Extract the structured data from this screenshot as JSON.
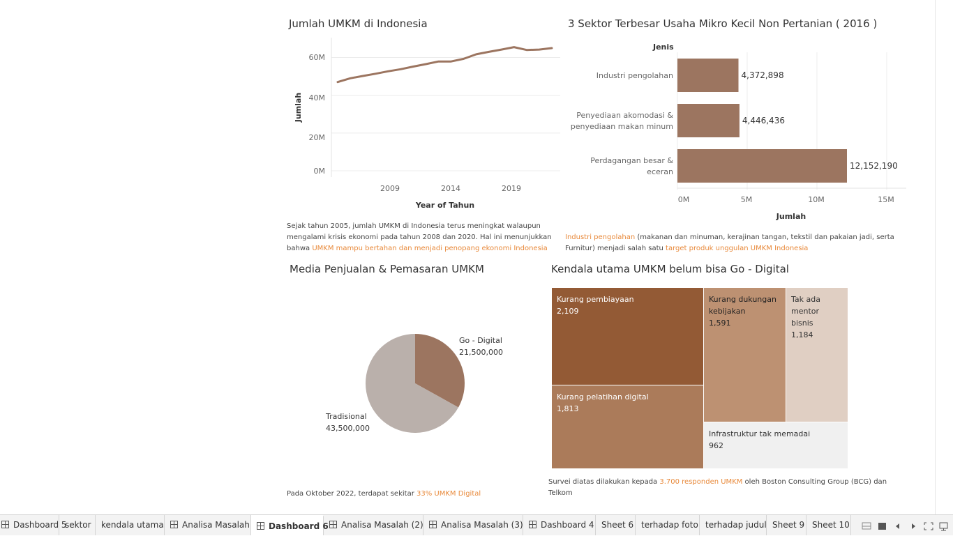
{
  "colors": {
    "brown": "#9c7560",
    "brown_dark": "#935a35",
    "brown_mid": "#bd9172",
    "light": "#e0cfc3",
    "gray_pie": "#bab0ab",
    "gray_light": "#f0f0f0",
    "highlight": "#e8893a"
  },
  "line_chart": {
    "title": "Jumlah UMKM di Indonesia",
    "ylabel": "Jumlah",
    "xlabel": "Year of Tahun",
    "yticks": [
      "60M",
      "40M",
      "20M",
      "0M"
    ],
    "xticks": [
      "2009",
      "2014",
      "2019"
    ]
  },
  "bar_chart": {
    "title": "3 Sektor Terbesar Usaha Mikro Kecil Non Pertanian ( 2016 )",
    "category_header": "Jenis",
    "xlabel": "Jumlah",
    "xticks": [
      "0M",
      "5M",
      "10M",
      "15M"
    ],
    "categories": [
      {
        "line1": "Industri pengolahan",
        "line2": ""
      },
      {
        "line1": "Penyediaan akomodasi &",
        "line2": "penyediaan makan minum"
      },
      {
        "line1": "Perdagangan besar &",
        "line2": "eceran"
      }
    ],
    "value_labels": [
      "4,372,898",
      "4,446,436",
      "12,152,190"
    ]
  },
  "note_line": {
    "line1": "Sejak tahun 2005, jumlah UMKM di Indonesia terus meningkat walaupun",
    "line2": "mengalami krisis ekonomi pada tahun 2008 dan 2020. Hal ini menunjukkan",
    "line3_prefix": "bahwa ",
    "line3_highlight": "UMKM mampu bertahan dan menjadi penopang ekonomi Indonesia"
  },
  "note_bar": {
    "highlight1": "Industri pengolahan",
    "line1_rest": " (makanan dan minuman, kerajinan tangan, tekstil dan pakaian jadi,  serta",
    "line2_prefix": "Furnitur) menjadi salah satu ",
    "highlight2": "target produk unggulan UMKM Indonesia"
  },
  "pie_chart": {
    "title": "Media Penjualan & Pemasaran UMKM",
    "slices": [
      {
        "name": "Go - Digital",
        "value_label": "21,500,000"
      },
      {
        "name": "Tradisional",
        "value_label": "43,500,000"
      }
    ],
    "note_prefix": "Pada Oktober 2022, terdapat sekitar ",
    "note_highlight": "33% UMKM Digital"
  },
  "treemap": {
    "title": "Kendala utama UMKM belum bisa Go - Digital",
    "cells": [
      {
        "label": "Kurang pembiayaan",
        "value": "2,109"
      },
      {
        "label": "Kurang pelatihan digital",
        "value": "1,813"
      },
      {
        "label": "Kurang dukungan kebijakan",
        "value": "1,591"
      },
      {
        "label": "Tak ada mentor bisnis",
        "value": "1,184"
      },
      {
        "label": "Infrastruktur tak memadai",
        "value": "962"
      }
    ],
    "note_prefix": "Survei diatas dilakukan kepada ",
    "note_highlight": "3.700 responden UMKM",
    "note_rest1": " oleh Boston Consulting Group (BCG) dan",
    "note_rest2": "Telkom"
  },
  "tabs": [
    "Dashboard 5",
    "sektor",
    "kendala utama",
    "Analisa Masalah",
    "Dashboard 6",
    "Analisa Masalah (2)",
    "Analisa Masalah (3)",
    "Dashboard 4",
    "Sheet 6",
    "terhadap foto",
    "terhadap judul",
    "Sheet 9",
    "Sheet 10"
  ],
  "active_tab": "Dashboard 6",
  "chart_data": [
    {
      "type": "line",
      "title": "Jumlah UMKM di Indonesia",
      "xlabel": "Year of Tahun",
      "ylabel": "Jumlah",
      "x": [
        2005,
        2006,
        2007,
        2008,
        2009,
        2010,
        2011,
        2012,
        2013,
        2014,
        2015,
        2016,
        2017,
        2018,
        2019,
        2020,
        2021,
        2022
      ],
      "values": [
        47.0,
        49.0,
        50.2,
        51.4,
        52.7,
        53.8,
        55.2,
        56.5,
        57.9,
        57.9,
        59.3,
        61.7,
        63.0,
        64.2,
        65.5,
        64.0,
        64.2,
        65.0
      ],
      "value_unit": "M",
      "ylim": [
        0,
        70
      ],
      "yticks": [
        0,
        20,
        40,
        60
      ],
      "xticks": [
        2009,
        2014,
        2019
      ]
    },
    {
      "type": "bar",
      "orientation": "horizontal",
      "title": "3 Sektor Terbesar Usaha Mikro Kecil Non Pertanian ( 2016 )",
      "xlabel": "Jumlah",
      "ylabel": "Jenis",
      "categories": [
        "Industri pengolahan",
        "Penyediaan akomodasi & penyediaan makan minum",
        "Perdagangan besar & eceran"
      ],
      "values": [
        4372898,
        4446436,
        12152190
      ],
      "xlim": [
        0,
        16000000
      ],
      "xticks": [
        0,
        5000000,
        10000000,
        15000000
      ]
    },
    {
      "type": "pie",
      "title": "Media Penjualan & Pemasaran UMKM",
      "categories": [
        "Go - Digital",
        "Tradisional"
      ],
      "values": [
        21500000,
        43500000
      ]
    },
    {
      "type": "treemap",
      "title": "Kendala utama UMKM belum bisa Go - Digital",
      "categories": [
        "Kurang pembiayaan",
        "Kurang pelatihan digital",
        "Kurang dukungan kebijakan",
        "Tak ada mentor bisnis",
        "Infrastruktur tak memadai"
      ],
      "values": [
        2109,
        1813,
        1591,
        1184,
        962
      ]
    }
  ]
}
